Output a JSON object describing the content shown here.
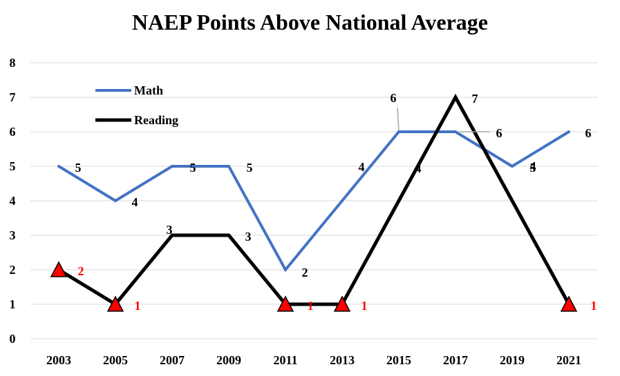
{
  "chart_data": {
    "type": "line",
    "title": "NAEP Points Above National Average",
    "xlabel": "",
    "ylabel": "",
    "categories": [
      "2003",
      "2005",
      "2007",
      "2009",
      "2011",
      "2013",
      "2015",
      "2017",
      "2019",
      "2021"
    ],
    "ylim": [
      0,
      8
    ],
    "yticks": [
      "0",
      "1",
      "2",
      "3",
      "4",
      "5",
      "6",
      "7",
      "8"
    ],
    "grid": true,
    "legend_position": "top-left",
    "series": [
      {
        "name": "Math",
        "color": "#4472C4",
        "values": [
          5,
          4,
          5,
          5,
          2,
          4,
          6,
          6,
          5,
          6
        ],
        "labels": [
          "5",
          "4",
          "5",
          "5",
          "2",
          "4",
          "6",
          "6",
          "5",
          "6"
        ]
      },
      {
        "name": "Reading",
        "color": "#000000",
        "values": [
          2,
          1,
          3,
          3,
          1,
          1,
          4,
          7,
          4,
          1
        ],
        "labels": [
          "2",
          "1",
          "3",
          "3",
          "1",
          "1",
          "4",
          "7",
          "4",
          "1"
        ],
        "markers": [
          true,
          true,
          false,
          false,
          true,
          true,
          false,
          false,
          false,
          true
        ],
        "marker_shape": "triangle",
        "marker_color": "#FF0000",
        "marker_label_color": "#FF0000"
      }
    ]
  }
}
